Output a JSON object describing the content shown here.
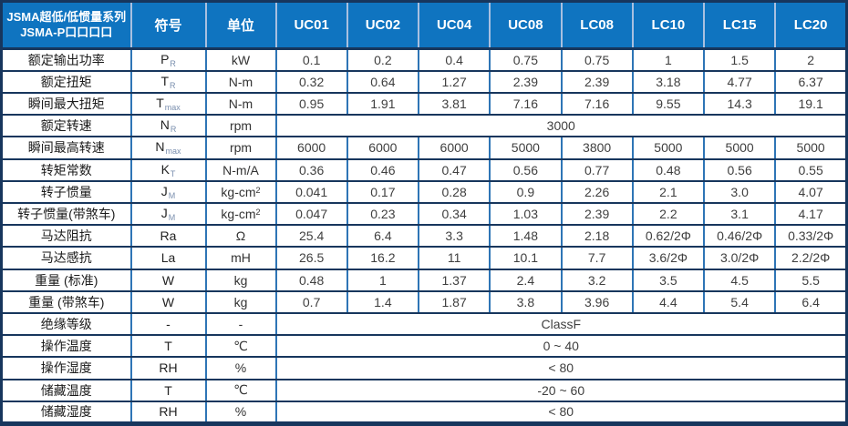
{
  "table": {
    "header": {
      "title_line1": "JSMA超低/低惯量系列",
      "title_line2": "JSMA-P口口口口",
      "symbol_label": "符号",
      "unit_label": "单位",
      "models": [
        "UC01",
        "UC02",
        "UC04",
        "UC08",
        "LC08",
        "LC10",
        "LC15",
        "LC20"
      ]
    },
    "rows": [
      {
        "label": "额定输出功率",
        "symbol": {
          "base": "P",
          "sub": "R"
        },
        "unit": "kW",
        "cells": [
          "0.1",
          "0.2",
          "0.4",
          "0.75",
          "0.75",
          "1",
          "1.5",
          "2"
        ]
      },
      {
        "label": "额定扭矩",
        "symbol": {
          "base": "T",
          "sub": "R"
        },
        "unit": "N-m",
        "cells": [
          "0.32",
          "0.64",
          "1.27",
          "2.39",
          "2.39",
          "3.18",
          "4.77",
          "6.37"
        ]
      },
      {
        "label": "瞬间最大扭矩",
        "symbol": {
          "base": "T",
          "sub": "max"
        },
        "unit": "N-m",
        "cells": [
          "0.95",
          "1.91",
          "3.81",
          "7.16",
          "7.16",
          "9.55",
          "14.3",
          "19.1"
        ]
      },
      {
        "label": "额定转速",
        "symbol": {
          "base": "N",
          "sub": "R"
        },
        "unit": "rpm",
        "merged": "3000"
      },
      {
        "label": "瞬间最高转速",
        "symbol": {
          "base": "N",
          "sub": "max"
        },
        "unit": "rpm",
        "cells": [
          "6000",
          "6000",
          "6000",
          "5000",
          "3800",
          "5000",
          "5000",
          "5000"
        ]
      },
      {
        "label": "转矩常数",
        "symbol": {
          "base": "K",
          "sub": "T"
        },
        "unit": "N-m/A",
        "cells": [
          "0.36",
          "0.46",
          "0.47",
          "0.56",
          "0.77",
          "0.48",
          "0.56",
          "0.55"
        ]
      },
      {
        "label": "转子惯量",
        "symbol": {
          "base": "J",
          "sub": "M"
        },
        "unit": "kg-cm",
        "unit_sup": "2",
        "cells": [
          "0.041",
          "0.17",
          "0.28",
          "0.9",
          "2.26",
          "2.1",
          "3.0",
          "4.07"
        ]
      },
      {
        "label": "转子惯量(带煞车)",
        "symbol": {
          "base": "J",
          "sub": "M"
        },
        "unit": "kg-cm",
        "unit_sup": "2",
        "cells": [
          "0.047",
          "0.23",
          "0.34",
          "1.03",
          "2.39",
          "2.2",
          "3.1",
          "4.17"
        ]
      },
      {
        "label": "马达阻抗",
        "symbol": {
          "base": "Ra"
        },
        "unit": "Ω",
        "cells": [
          "25.4",
          "6.4",
          "3.3",
          "1.48",
          "2.18",
          "0.62/2Φ",
          "0.46/2Φ",
          "0.33/2Φ"
        ]
      },
      {
        "label": "马达感抗",
        "symbol": {
          "base": "La"
        },
        "unit": "mH",
        "cells": [
          "26.5",
          "16.2",
          "11",
          "10.1",
          "7.7",
          "3.6/2Φ",
          "3.0/2Φ",
          "2.2/2Φ"
        ]
      },
      {
        "label": "重量 (标准)",
        "symbol": {
          "base": "W"
        },
        "unit": "kg",
        "cells": [
          "0.48",
          "1",
          "1.37",
          "2.4",
          "3.2",
          "3.5",
          "4.5",
          "5.5"
        ]
      },
      {
        "label": "重量 (带煞车)",
        "symbol": {
          "base": "W"
        },
        "unit": "kg",
        "cells": [
          "0.7",
          "1.4",
          "1.87",
          "3.8",
          "3.96",
          "4.4",
          "5.4",
          "6.4"
        ]
      },
      {
        "label": "绝缘等级",
        "symbol": {
          "base": "-"
        },
        "unit": "-",
        "merged": "ClassF"
      },
      {
        "label": "操作温度",
        "symbol": {
          "base": "T"
        },
        "unit": "℃",
        "merged": "0 ~ 40"
      },
      {
        "label": "操作湿度",
        "symbol": {
          "base": "RH"
        },
        "unit": "%",
        "merged": "< 80"
      },
      {
        "label": "储藏温度",
        "symbol": {
          "base": "T"
        },
        "unit": "℃",
        "merged": "-20 ~ 60"
      },
      {
        "label": "储藏湿度",
        "symbol": {
          "base": "RH"
        },
        "unit": "%",
        "merged": "< 80"
      }
    ],
    "colors": {
      "header_bg": "#0f74c0",
      "header_text": "#ffffff",
      "border_dark": "#17365d",
      "border_blue": "#2e75b6",
      "header_divider": "#a9c0e0",
      "value_text": "#3f3f3f",
      "label_text": "#1a1a1a"
    }
  }
}
